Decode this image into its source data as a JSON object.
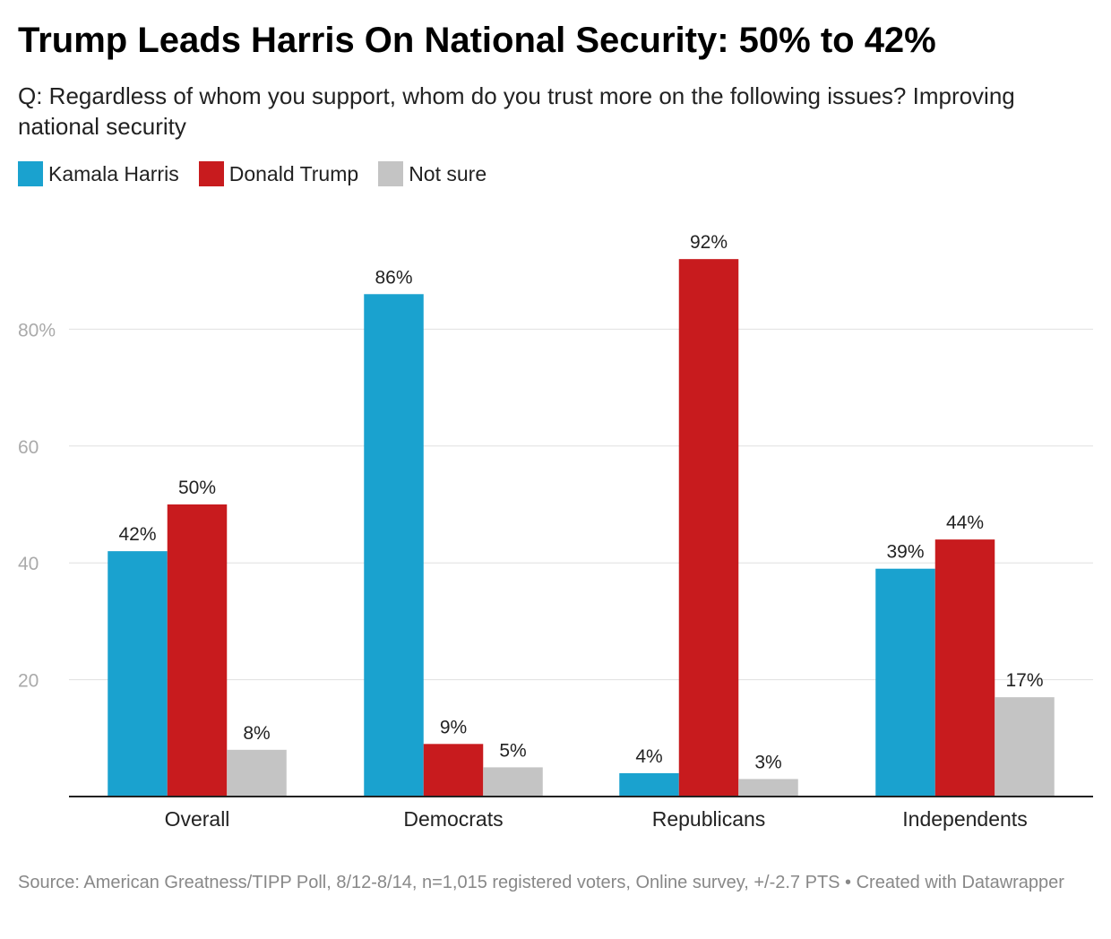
{
  "title": "Trump Leads Harris On National Security: 50% to 42%",
  "subtitle": "Q: Regardless of whom you support, whom do you trust more on the following issues? Improving national security",
  "source": "Source: American Greatness/TIPP Poll, 8/12-8/14, n=1,015 registered voters, Online survey, +/-2.7 PTS • Created with Datawrapper",
  "colors": {
    "harris": "#1aa2cf",
    "trump": "#c81b1e",
    "not_sure": "#c4c4c4",
    "grid": "#e0e0e0",
    "axis": "#222222",
    "tick_text": "#aaaaaa"
  },
  "chart_data": {
    "type": "bar",
    "title": "Trump Leads Harris On National Security: 50% to 42%",
    "xlabel": "",
    "ylabel": "",
    "ylim": [
      0,
      92
    ],
    "yticks": [
      20,
      40,
      60,
      80
    ],
    "ytick_labels": [
      "20",
      "40",
      "60",
      "80%"
    ],
    "categories": [
      "Overall",
      "Democrats",
      "Republicans",
      "Independents"
    ],
    "series": [
      {
        "name": "Kamala Harris",
        "color_key": "harris",
        "values": [
          42,
          86,
          4,
          39
        ],
        "labels": [
          "42%",
          "86%",
          "4%",
          "39%"
        ]
      },
      {
        "name": "Donald Trump",
        "color_key": "trump",
        "values": [
          50,
          9,
          92,
          44
        ],
        "labels": [
          "50%",
          "9%",
          "92%",
          "44%"
        ]
      },
      {
        "name": "Not sure",
        "color_key": "not_sure",
        "values": [
          8,
          5,
          3,
          17
        ],
        "labels": [
          "8%",
          "5%",
          "3%",
          "17%"
        ]
      }
    ],
    "legend_position": "top-left",
    "grid": true
  }
}
